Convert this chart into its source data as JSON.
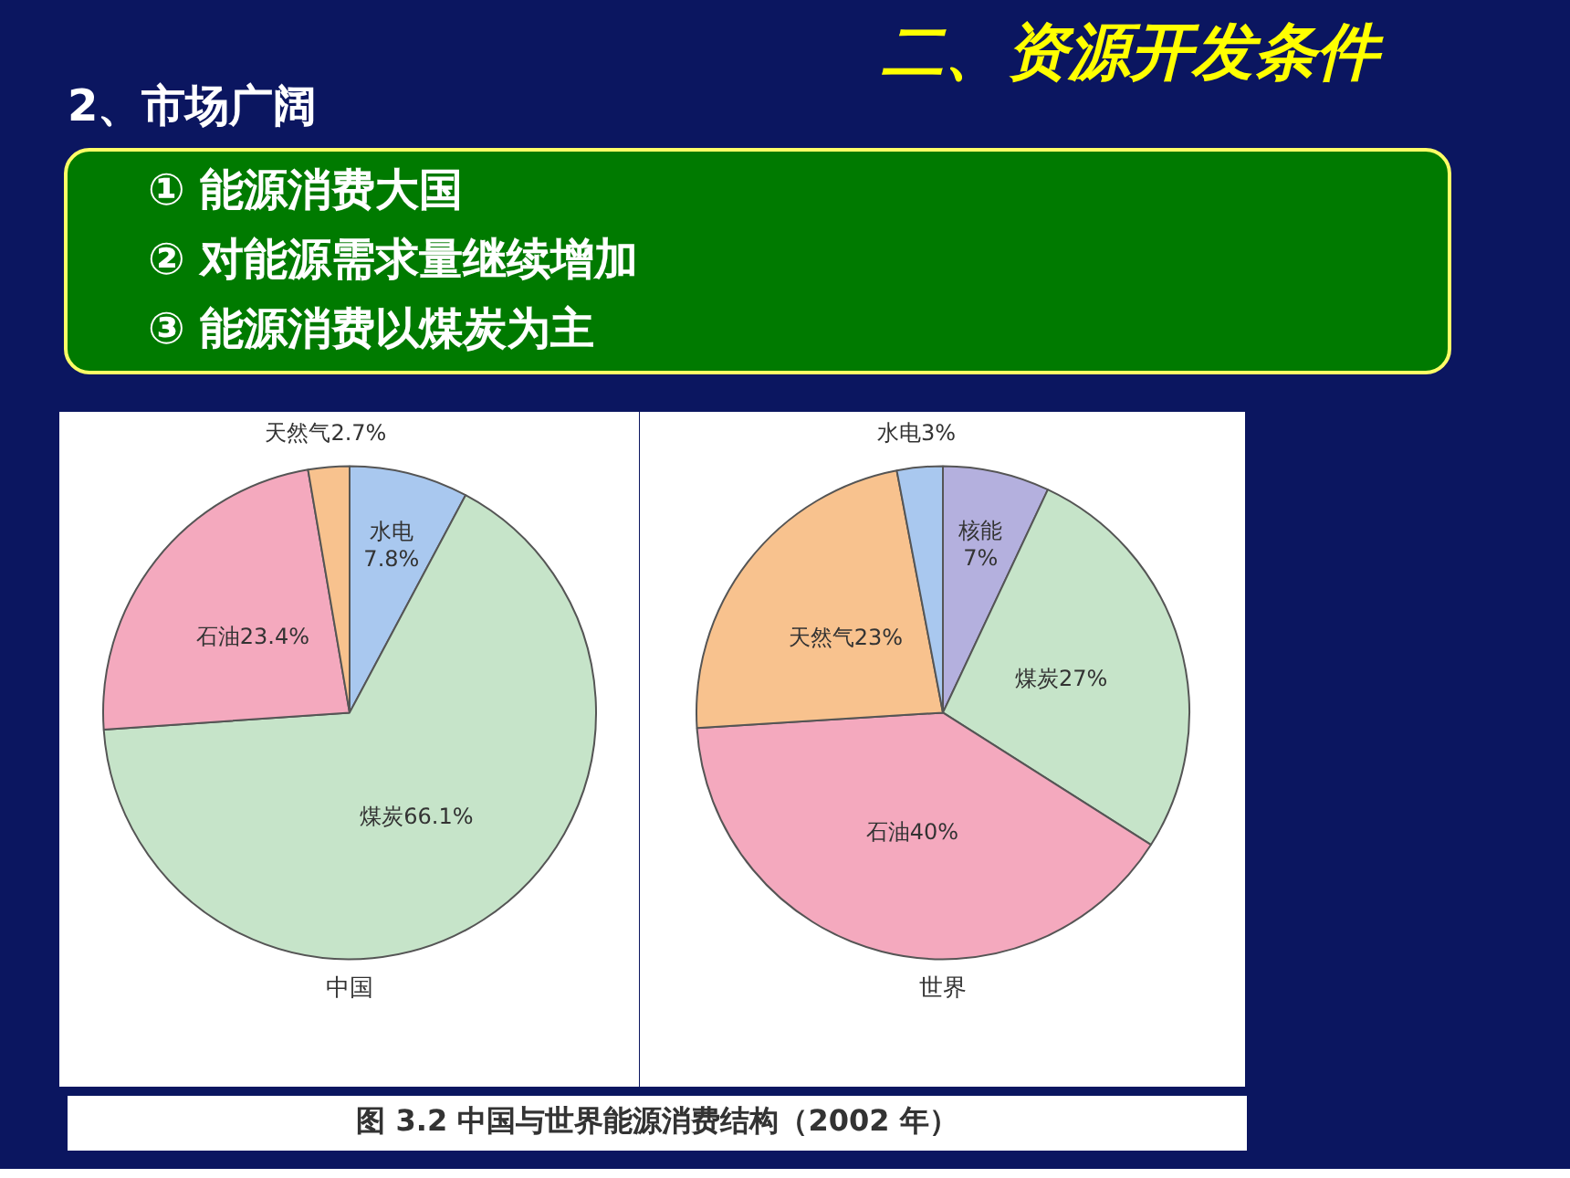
{
  "chart_data": [
    {
      "type": "other",
      "title": "二、资源开发条件",
      "subtitle": "2、市场广阔",
      "annotations": [
        "① 能源消费大国",
        "② 对能源需求量继续增加",
        "③ 能源消费以煤炭为主"
      ]
    },
    {
      "type": "pie",
      "title": "中国",
      "categories": [
        "水电",
        "煤炭",
        "石油",
        "天然气"
      ],
      "values": [
        7.8,
        66.1,
        23.4,
        2.7
      ],
      "colors": [
        "#a9c8ef",
        "#c6e4c9",
        "#f4a9be",
        "#f8c28e"
      ],
      "value_labels": [
        "7.8%",
        "66.1%",
        "23.4%",
        "2.7%"
      ]
    },
    {
      "type": "pie",
      "title": "世界",
      "categories": [
        "核能",
        "煤炭",
        "石油",
        "天然气",
        "水电"
      ],
      "values": [
        7,
        27,
        40,
        23,
        3
      ],
      "colors": [
        "#b4b0de",
        "#c6e4c9",
        "#f4a9be",
        "#f8c28e",
        "#a9c8ef"
      ],
      "value_labels": [
        "7%",
        "27%",
        "40%",
        "23%",
        "3%"
      ]
    },
    {
      "type": "other",
      "annotations": [
        "图 3.2  中国与世界能源消费结构（2002 年）"
      ]
    }
  ]
}
